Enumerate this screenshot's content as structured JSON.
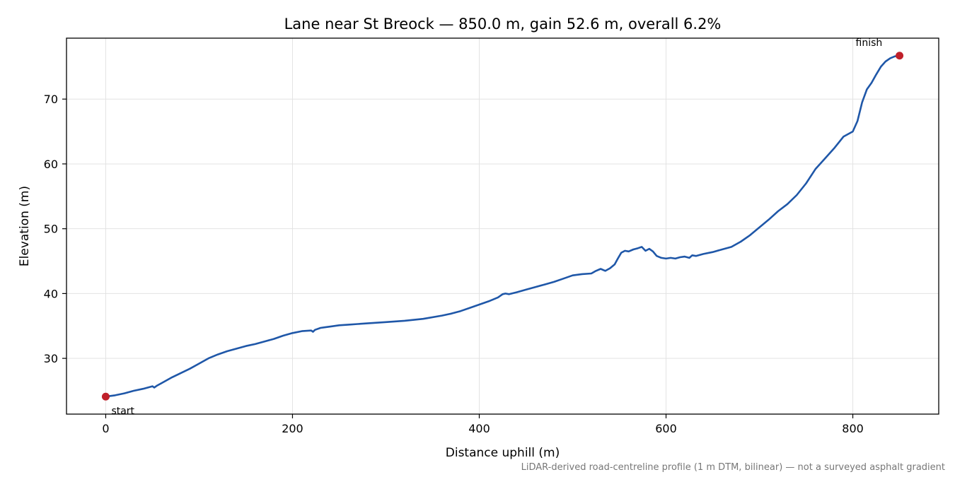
{
  "chart_data": {
    "type": "line",
    "title": "Lane near St Breock — 850.0 m, gain 52.6 m, overall 6.2%",
    "xlabel": "Distance uphill (m)",
    "ylabel": "Elevation (m)",
    "footnote": "LiDAR-derived road-centreline profile (1 m DTM, bilinear) — not a surveyed asphalt gradient",
    "xlim": [
      -42,
      892
    ],
    "ylim": [
      21.4,
      79.4
    ],
    "xticks": [
      0,
      200,
      400,
      600,
      800
    ],
    "yticks": [
      30,
      40,
      50,
      60,
      70
    ],
    "grid": true,
    "colors": {
      "line": "#1f57a8",
      "marker": "#c0202a",
      "grid": "#e3e3e3"
    },
    "series": [
      {
        "x": [
          0,
          10,
          20,
          30,
          40,
          50,
          52,
          55,
          60,
          70,
          80,
          90,
          100,
          110,
          120,
          130,
          140,
          150,
          160,
          170,
          180,
          190,
          200,
          210,
          220,
          222,
          224,
          230,
          235,
          240,
          250,
          260,
          270,
          280,
          300,
          320,
          340,
          360,
          370,
          380,
          390,
          400,
          410,
          420,
          425,
          428,
          432,
          440,
          450,
          460,
          470,
          480,
          490,
          500,
          510,
          520,
          525,
          530,
          535,
          540,
          545,
          548,
          552,
          556,
          560,
          565,
          570,
          574,
          578,
          582,
          586,
          590,
          595,
          600,
          605,
          610,
          615,
          620,
          625,
          628,
          632,
          640,
          650,
          660,
          670,
          680,
          690,
          700,
          710,
          720,
          730,
          740,
          750,
          760,
          770,
          780,
          790,
          800,
          805,
          810,
          815,
          820,
          825,
          830,
          835,
          840,
          845,
          850
        ],
        "y": [
          24.1,
          24.3,
          24.6,
          25.0,
          25.3,
          25.7,
          25.5,
          25.8,
          26.2,
          27.0,
          27.7,
          28.4,
          29.2,
          30.0,
          30.6,
          31.1,
          31.5,
          31.9,
          32.2,
          32.6,
          33.0,
          33.5,
          33.9,
          34.2,
          34.3,
          34.1,
          34.4,
          34.7,
          34.8,
          34.9,
          35.1,
          35.2,
          35.3,
          35.4,
          35.6,
          35.8,
          36.1,
          36.6,
          36.9,
          37.3,
          37.8,
          38.3,
          38.8,
          39.4,
          39.9,
          40.0,
          39.9,
          40.2,
          40.6,
          41.0,
          41.4,
          41.8,
          42.3,
          42.8,
          43.0,
          43.1,
          43.5,
          43.8,
          43.5,
          43.9,
          44.5,
          45.3,
          46.3,
          46.6,
          46.5,
          46.8,
          47.0,
          47.2,
          46.6,
          46.9,
          46.5,
          45.8,
          45.5,
          45.4,
          45.5,
          45.4,
          45.6,
          45.7,
          45.5,
          45.9,
          45.8,
          46.1,
          46.4,
          46.8,
          47.2,
          48.0,
          49.0,
          50.2,
          51.4,
          52.7,
          53.8,
          55.2,
          57.0,
          59.2,
          60.8,
          62.4,
          64.2,
          65.0,
          66.6,
          69.5,
          71.5,
          72.5,
          73.8,
          75.0,
          75.8,
          76.3,
          76.6,
          76.7
        ]
      }
    ],
    "markers": [
      {
        "label": "start",
        "x": 0,
        "y": 24.1
      },
      {
        "label": "finish",
        "x": 850,
        "y": 76.7
      }
    ]
  }
}
